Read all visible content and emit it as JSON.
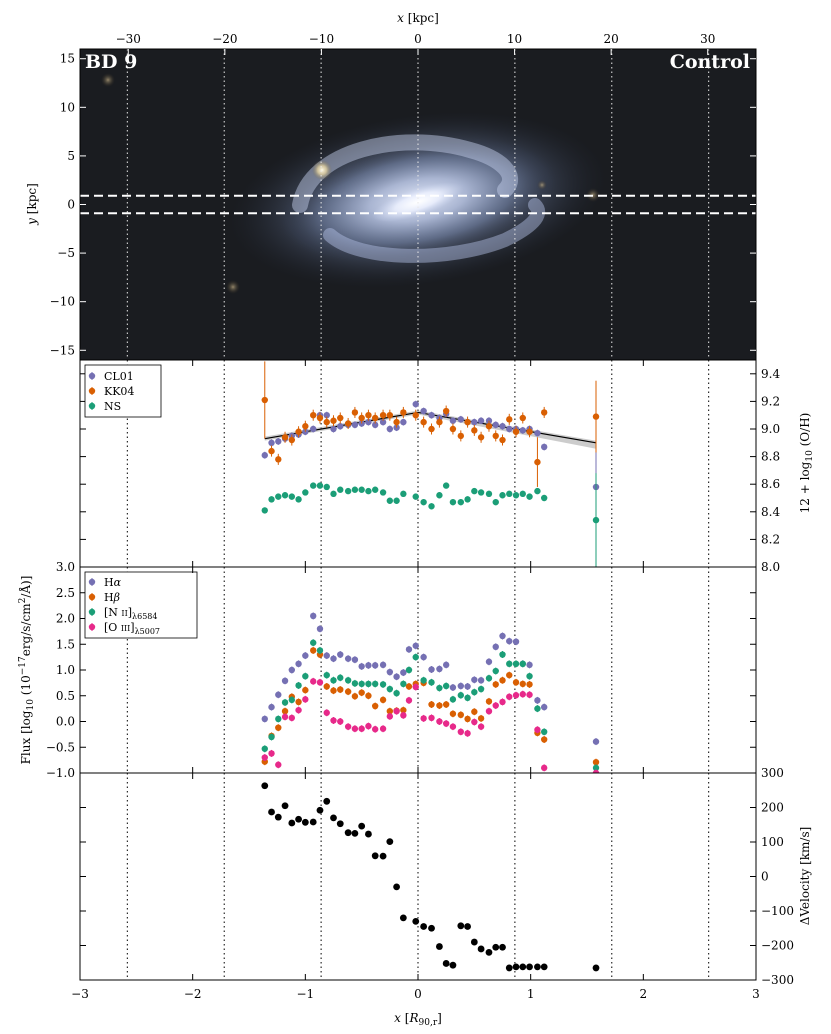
{
  "top_axis": {
    "label": "x [kpc]",
    "ticks": [
      -30,
      -20,
      -10,
      0,
      10,
      20,
      30
    ],
    "range": [
      -35.0,
      35.0
    ]
  },
  "bottom_axis": {
    "label": "x [R90,r]",
    "ticks": [
      -3,
      -2,
      -1,
      0,
      1,
      2,
      3
    ],
    "range": [
      -3,
      3
    ]
  },
  "image_panel": {
    "label_left": "BD 9",
    "label_right": "Control",
    "ylabel": "y [kpc]",
    "y_ticks": [
      15,
      10,
      5,
      0,
      -5,
      -10,
      -15
    ],
    "y_range": [
      -16,
      16
    ],
    "slit_y_kpc": [
      0.9,
      -0.9
    ],
    "vertical_guides_r90": [
      -2.58,
      -1.72,
      -0.86,
      0.0,
      0.86,
      1.72,
      2.58
    ]
  },
  "legend_metallicity": [
    "CL01",
    "KK04",
    "NS"
  ],
  "legend_flux": [
    "Hα",
    "Hβ",
    "[N II]λ6584",
    "[O III]λ5007"
  ],
  "ylabels": {
    "metallicity": "12 + log10 (O/H)",
    "flux": "Flux [log10 (10^-17 erg/s/cm^2/Å)]",
    "velocity": "ΔVelocity [km/s]"
  },
  "colors": {
    "CL01": "#7570b3",
    "KK04": "#d95f02",
    "NS": "#1b9e77",
    "Halpha": "#7570b3",
    "Hbeta": "#d95f02",
    "NII": "#1b9e77",
    "OIII": "#e7298a",
    "velocity": "#000000"
  },
  "chart_data": [
    {
      "type": "scatter",
      "panel": "metallicity",
      "ylabel": "12 + log10 (O/H)",
      "ylim": [
        8.0,
        9.5
      ],
      "y_ticks": [
        8.0,
        8.2,
        8.4,
        8.6,
        8.8,
        9.0,
        9.2,
        9.4
      ],
      "series": [
        {
          "name": "CL01",
          "x": [
            -1.36,
            -1.3,
            -1.24,
            -1.18,
            -1.12,
            -1.06,
            -1.0,
            -0.93,
            -0.87,
            -0.81,
            -0.75,
            -0.69,
            -0.62,
            -0.56,
            -0.5,
            -0.44,
            -0.38,
            -0.31,
            -0.25,
            -0.19,
            -0.13,
            -0.02,
            0.05,
            0.12,
            0.19,
            0.25,
            0.31,
            0.38,
            0.44,
            0.5,
            0.56,
            0.63,
            0.69,
            0.75,
            0.81,
            0.87,
            0.93,
            0.99,
            1.06,
            1.12,
            1.58
          ],
          "y": [
            8.81,
            8.9,
            8.91,
            8.93,
            8.95,
            8.96,
            8.98,
            9.0,
            9.1,
            9.1,
            9.0,
            9.02,
            9.03,
            9.03,
            9.04,
            9.05,
            9.03,
            9.05,
            9.0,
            9.01,
            9.05,
            9.18,
            9.13,
            9.1,
            9.08,
            9.11,
            9.06,
            9.07,
            9.05,
            9.05,
            9.06,
            9.06,
            9.03,
            9.02,
            9.0,
            9.0,
            8.99,
            9.0,
            8.97,
            8.87,
            8.58
          ]
        },
        {
          "name": "KK04",
          "x": [
            -1.36,
            -1.3,
            -1.24,
            -1.18,
            -1.12,
            -1.06,
            -1.0,
            -0.93,
            -0.87,
            -0.81,
            -0.75,
            -0.69,
            -0.62,
            -0.56,
            -0.5,
            -0.44,
            -0.38,
            -0.31,
            -0.25,
            -0.19,
            -0.13,
            -0.02,
            0.05,
            0.12,
            0.19,
            0.25,
            0.31,
            0.38,
            0.44,
            0.5,
            0.56,
            0.63,
            0.69,
            0.75,
            0.81,
            0.87,
            0.93,
            0.99,
            1.06,
            1.12,
            1.58
          ],
          "y": [
            9.21,
            8.84,
            8.78,
            8.94,
            8.92,
            8.98,
            9.02,
            9.1,
            9.08,
            9.05,
            9.06,
            9.08,
            9.04,
            9.12,
            9.08,
            9.1,
            9.08,
            9.1,
            9.1,
            9.05,
            9.12,
            9.1,
            9.05,
            9.0,
            9.05,
            9.13,
            9.0,
            8.95,
            9.05,
            8.99,
            8.94,
            9.02,
            8.95,
            8.92,
            9.07,
            8.98,
            9.08,
            8.98,
            8.76,
            9.12,
            9.09
          ]
        },
        {
          "name": "NS",
          "x": [
            -1.36,
            -1.3,
            -1.24,
            -1.18,
            -1.12,
            -1.06,
            -1.0,
            -0.93,
            -0.87,
            -0.81,
            -0.75,
            -0.69,
            -0.62,
            -0.56,
            -0.5,
            -0.44,
            -0.38,
            -0.31,
            -0.25,
            -0.19,
            -0.13,
            -0.02,
            0.05,
            0.12,
            0.19,
            0.25,
            0.31,
            0.38,
            0.44,
            0.5,
            0.56,
            0.63,
            0.69,
            0.75,
            0.81,
            0.87,
            0.93,
            0.99,
            1.06,
            1.12,
            1.58
          ],
          "y": [
            8.41,
            8.49,
            8.51,
            8.52,
            8.51,
            8.49,
            8.54,
            8.59,
            8.59,
            8.58,
            8.53,
            8.56,
            8.55,
            8.56,
            8.56,
            8.55,
            8.56,
            8.54,
            8.48,
            8.48,
            8.53,
            8.51,
            8.47,
            8.44,
            8.52,
            8.59,
            8.47,
            8.47,
            8.49,
            8.55,
            8.54,
            8.53,
            8.47,
            8.52,
            8.53,
            8.52,
            8.53,
            8.51,
            8.55,
            8.5,
            8.34
          ]
        }
      ],
      "fit_line": {
        "x": [
          -1.36,
          0.0,
          1.58
        ],
        "y": [
          8.93,
          9.12,
          8.9
        ]
      }
    },
    {
      "type": "scatter",
      "panel": "flux",
      "ylabel": "Flux [log10 (10^-17 erg/s/cm^2/Å)]",
      "ylim": [
        -1.0,
        3.0
      ],
      "y_ticks": [
        -1.0,
        -0.5,
        0.0,
        0.5,
        1.0,
        1.5,
        2.0,
        2.5,
        3.0
      ],
      "series": [
        {
          "name": "Hα",
          "x": [
            -1.36,
            -1.3,
            -1.24,
            -1.18,
            -1.12,
            -1.06,
            -1.0,
            -0.93,
            -0.87,
            -0.81,
            -0.75,
            -0.69,
            -0.62,
            -0.56,
            -0.5,
            -0.44,
            -0.38,
            -0.31,
            -0.25,
            -0.19,
            -0.13,
            -0.08,
            -0.02,
            0.05,
            0.12,
            0.19,
            0.25,
            0.31,
            0.38,
            0.44,
            0.5,
            0.56,
            0.63,
            0.69,
            0.75,
            0.81,
            0.87,
            0.93,
            0.99,
            1.06,
            1.12,
            1.58
          ],
          "y": [
            0.05,
            0.28,
            0.52,
            0.79,
            1.0,
            1.12,
            1.28,
            2.05,
            1.8,
            1.28,
            1.22,
            1.3,
            1.22,
            1.2,
            1.07,
            1.09,
            1.09,
            1.1,
            0.96,
            0.87,
            0.95,
            1.4,
            1.47,
            1.25,
            1.01,
            1.02,
            1.1,
            0.66,
            0.69,
            0.68,
            0.81,
            0.8,
            1.16,
            1.45,
            1.66,
            1.56,
            1.55,
            1.12,
            1.1,
            0.41,
            0.28,
            -0.39
          ]
        },
        {
          "name": "Hβ",
          "x": [
            -1.36,
            -1.3,
            -1.24,
            -1.18,
            -1.12,
            -1.06,
            -1.0,
            -0.93,
            -0.87,
            -0.81,
            -0.75,
            -0.69,
            -0.62,
            -0.56,
            -0.5,
            -0.44,
            -0.38,
            -0.31,
            -0.25,
            -0.19,
            -0.13,
            -0.08,
            -0.02,
            0.05,
            0.12,
            0.19,
            0.25,
            0.31,
            0.38,
            0.44,
            0.5,
            0.56,
            0.63,
            0.69,
            0.75,
            0.81,
            0.87,
            0.93,
            0.99,
            1.06,
            1.12,
            1.58
          ],
          "y": [
            -0.78,
            -0.28,
            -0.12,
            0.2,
            0.48,
            0.38,
            0.61,
            1.38,
            1.3,
            0.68,
            0.6,
            0.62,
            0.58,
            0.49,
            0.56,
            0.5,
            0.3,
            0.42,
            0.2,
            0.21,
            0.22,
            0.68,
            0.73,
            0.75,
            0.33,
            0.31,
            0.33,
            0.15,
            0.13,
            0.05,
            0.19,
            0.06,
            0.39,
            0.72,
            0.8,
            0.9,
            0.76,
            0.73,
            0.72,
            -0.22,
            -0.35,
            -0.79
          ]
        },
        {
          "name": "[N II]λ6584",
          "x": [
            -1.36,
            -1.3,
            -1.24,
            -1.18,
            -1.12,
            -1.06,
            -1.0,
            -0.93,
            -0.87,
            -0.81,
            -0.75,
            -0.69,
            -0.62,
            -0.56,
            -0.5,
            -0.44,
            -0.38,
            -0.31,
            -0.25,
            -0.19,
            -0.13,
            -0.08,
            -0.02,
            0.05,
            0.12,
            0.19,
            0.25,
            0.31,
            0.38,
            0.44,
            0.5,
            0.56,
            0.63,
            0.69,
            0.75,
            0.81,
            0.87,
            0.93,
            0.99,
            1.06,
            1.12,
            1.58
          ],
          "y": [
            -0.53,
            -0.3,
            0.05,
            0.37,
            0.42,
            0.7,
            0.88,
            1.53,
            1.38,
            0.9,
            0.8,
            0.85,
            0.8,
            0.74,
            0.73,
            0.73,
            0.73,
            0.72,
            0.63,
            0.55,
            0.73,
            1.0,
            1.25,
            0.8,
            0.76,
            0.65,
            0.69,
            0.43,
            0.51,
            0.46,
            0.57,
            0.63,
            0.84,
            0.98,
            1.3,
            1.12,
            1.12,
            1.12,
            0.88,
            0.25,
            -0.2,
            -0.9
          ]
        },
        {
          "name": "[O III]λ5007",
          "x": [
            -1.36,
            -1.3,
            -1.24,
            -1.18,
            -1.12,
            -1.06,
            -1.0,
            -0.93,
            -0.87,
            -0.81,
            -0.75,
            -0.69,
            -0.62,
            -0.56,
            -0.5,
            -0.44,
            -0.38,
            -0.31,
            -0.25,
            -0.19,
            -0.13,
            -0.08,
            -0.02,
            0.05,
            0.12,
            0.19,
            0.25,
            0.31,
            0.38,
            0.44,
            0.5,
            0.56,
            0.63,
            0.69,
            0.75,
            0.81,
            0.87,
            0.93,
            0.99,
            1.06,
            1.12,
            1.58
          ],
          "y": [
            -0.7,
            -0.62,
            -0.84,
            0.09,
            0.07,
            0.22,
            0.43,
            0.78,
            0.76,
            0.17,
            0.02,
            0.0,
            -0.1,
            -0.14,
            -0.14,
            -0.09,
            -0.15,
            -0.14,
            0.1,
            0.2,
            0.12,
            0.41,
            0.67,
            0.06,
            0.07,
            0.0,
            -0.04,
            -0.1,
            -0.2,
            -0.23,
            -0.01,
            -0.1,
            0.2,
            0.31,
            0.38,
            0.48,
            0.51,
            0.53,
            0.52,
            -0.16,
            -0.9,
            -1.0
          ]
        }
      ]
    },
    {
      "type": "scatter",
      "panel": "velocity",
      "ylabel": "ΔVelocity [km/s]",
      "ylim": [
        -300,
        300
      ],
      "y_ticks": [
        -300,
        -200,
        -100,
        0,
        100,
        200,
        300
      ],
      "series": [
        {
          "name": "",
          "x": [
            -1.36,
            -1.3,
            -1.24,
            -1.18,
            -1.12,
            -1.06,
            -1.0,
            -0.93,
            -0.87,
            -0.81,
            -0.75,
            -0.69,
            -0.62,
            -0.56,
            -0.5,
            -0.44,
            -0.38,
            -0.31,
            -0.25,
            -0.19,
            -0.13,
            -0.02,
            0.05,
            0.12,
            0.19,
            0.25,
            0.31,
            0.38,
            0.44,
            0.5,
            0.56,
            0.63,
            0.69,
            0.75,
            0.81,
            0.87,
            0.93,
            0.99,
            1.06,
            1.12,
            1.58
          ],
          "y": [
            263,
            187,
            172,
            205,
            155,
            166,
            157,
            158,
            192,
            218,
            170,
            153,
            127,
            125,
            146,
            123,
            60,
            59,
            101,
            -30,
            -120,
            -130,
            -145,
            -150,
            -203,
            -252,
            -257,
            -143,
            -145,
            -190,
            -210,
            -220,
            -205,
            -205,
            -265,
            -262,
            -262,
            -262,
            -262,
            -262,
            -265
          ]
        }
      ]
    }
  ]
}
